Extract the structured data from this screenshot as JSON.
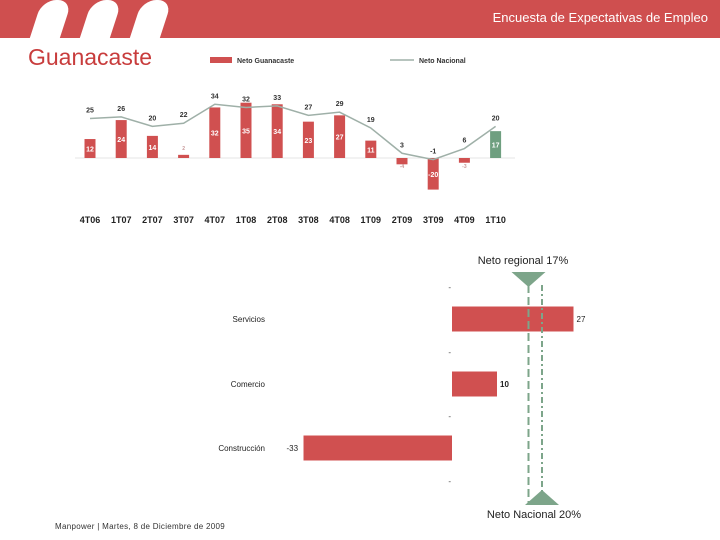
{
  "header": {
    "title": "Encuesta de Expectativas de Empleo"
  },
  "region": "Guanacaste",
  "footer": "Manpower | Martes, 8 de Diciembre de 2009",
  "colors": {
    "brand": "#cf4f4f",
    "bar": "#d05050",
    "bar_last": "#6f9f80",
    "nacional_line": "#9fb0a8",
    "arrow": "#7da58a"
  },
  "chart_data": [
    {
      "type": "bar",
      "title": "",
      "categories": [
        "4T06",
        "1T07",
        "2T07",
        "3T07",
        "4T07",
        "1T08",
        "2T08",
        "3T08",
        "4T08",
        "1T09",
        "2T09",
        "3T09",
        "4T09",
        "1T10"
      ],
      "series": [
        {
          "name": "Neto Guanacaste",
          "type": "bar",
          "values": [
            12,
            24,
            14,
            2,
            32,
            35,
            34,
            23,
            27,
            11,
            -4,
            -20,
            -3,
            17
          ]
        },
        {
          "name": "Neto Nacional",
          "type": "line",
          "values": [
            25,
            26,
            20,
            22,
            34,
            32,
            33,
            27,
            29,
            19,
            3,
            -1,
            6,
            20
          ]
        }
      ],
      "value_labels_gua": [
        "12",
        "24",
        "14",
        "2",
        "32",
        "35",
        "34",
        "23",
        "27",
        "11",
        "-4",
        "-20",
        "-3",
        "17"
      ],
      "value_labels_nac": [
        "25",
        "26",
        "20",
        "22",
        "34",
        "32",
        "33",
        "27",
        "29",
        "19",
        "3",
        "-1",
        "6",
        "20"
      ],
      "legend": {
        "position": "top"
      }
    },
    {
      "type": "bar",
      "orientation": "horizontal",
      "categories": [
        "Servicios",
        "Comercio",
        "Construcción"
      ],
      "values": [
        27,
        10,
        -33
      ],
      "value_labels": [
        "27",
        "10",
        "-33"
      ],
      "reference_lines": [
        {
          "label": "Neto regional 17%",
          "value": 17
        },
        {
          "label": "Neto Nacional 20%",
          "value": 20
        }
      ],
      "tick_marks": [
        "-",
        "-",
        "-",
        "-"
      ]
    }
  ]
}
